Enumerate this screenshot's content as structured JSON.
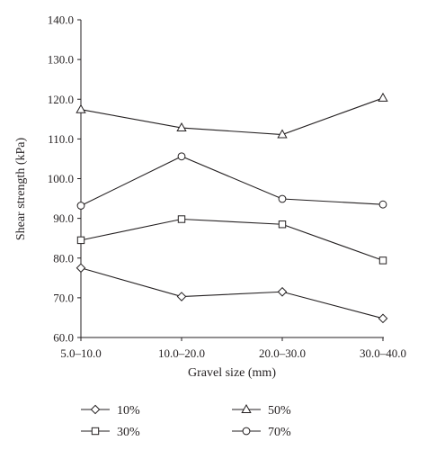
{
  "chart_data": {
    "type": "line",
    "categories": [
      "5.0–10.0",
      "10.0–20.0",
      "20.0–30.0",
      "30.0–40.0"
    ],
    "xlabel": "Gravel size (mm)",
    "ylabel": "Shear strength (kPa)",
    "ylim": [
      60.0,
      140.0
    ],
    "yticks": [
      "60.0",
      "70.0",
      "80.0",
      "90.0",
      "100.0",
      "110.0",
      "120.0",
      "130.0",
      "140.0"
    ],
    "grid": false,
    "legend_position": "bottom",
    "series": [
      {
        "name": "10%",
        "marker": "diamond",
        "values": [
          77.5,
          70.3,
          71.5,
          64.8
        ]
      },
      {
        "name": "30%",
        "marker": "square",
        "values": [
          84.5,
          89.8,
          88.5,
          79.4
        ]
      },
      {
        "name": "50%",
        "marker": "triangle",
        "values": [
          117.4,
          112.8,
          111.1,
          120.3
        ]
      },
      {
        "name": "70%",
        "marker": "circle",
        "values": [
          93.2,
          105.6,
          94.9,
          93.5
        ]
      }
    ],
    "colors": {
      "line": "#231f20",
      "marker_fill": "#ffffff"
    }
  }
}
